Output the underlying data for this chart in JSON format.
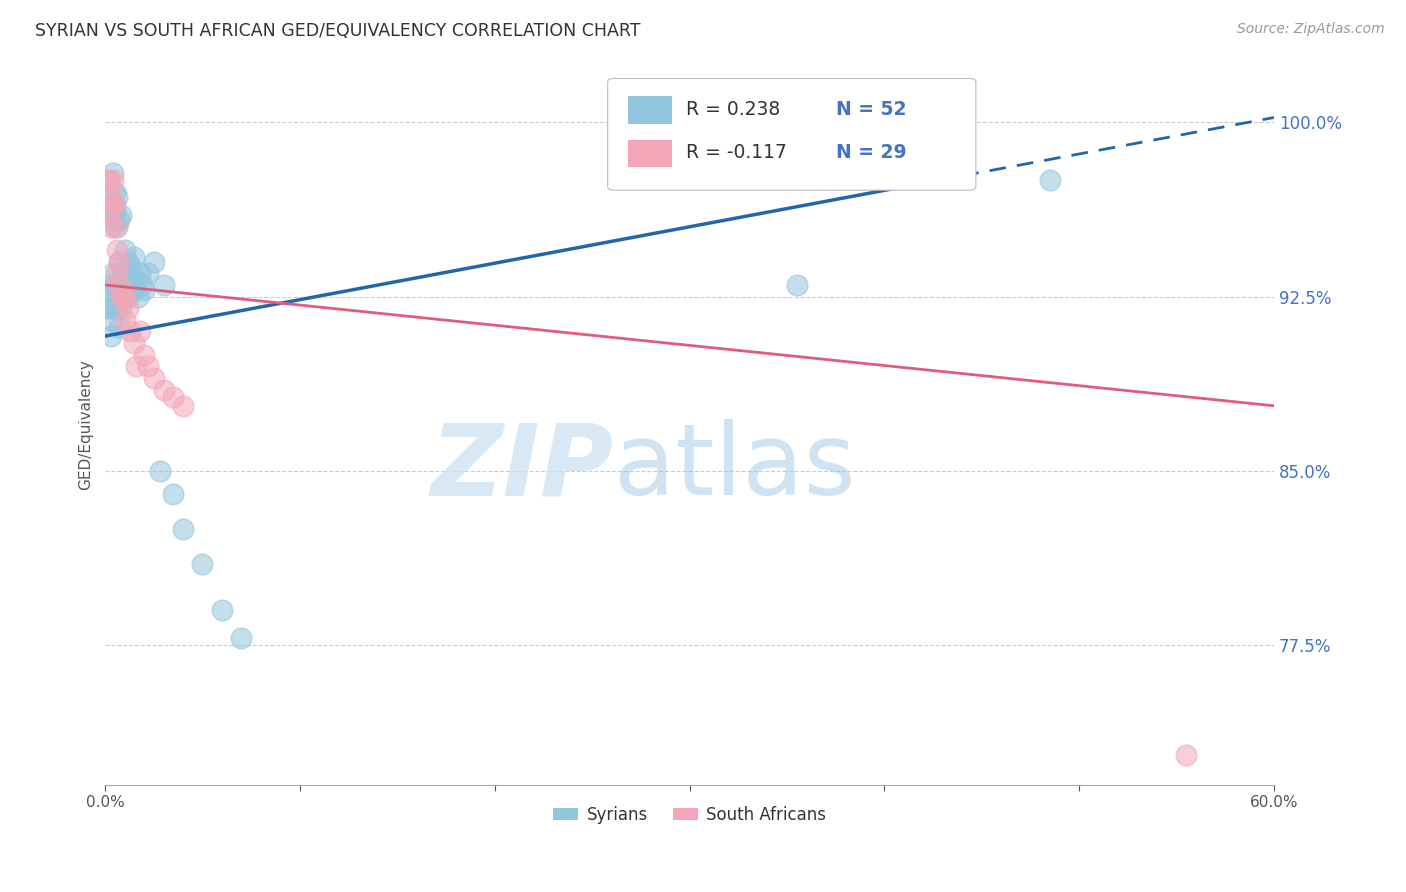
{
  "title": "SYRIAN VS SOUTH AFRICAN GED/EQUIVALENCY CORRELATION CHART",
  "source": "Source: ZipAtlas.com",
  "ylabel": "GED/Equivalency",
  "ytick_labels": [
    "77.5%",
    "85.0%",
    "92.5%",
    "100.0%"
  ],
  "ytick_values": [
    0.775,
    0.85,
    0.925,
    1.0
  ],
  "xmin": 0.0,
  "xmax": 0.6,
  "ymin": 0.715,
  "ymax": 1.025,
  "blue_color": "#92c5de",
  "pink_color": "#f4a6b8",
  "blue_line_color": "#2166ac",
  "pink_line_color": "#e05c7a",
  "blue_line_y0": 0.908,
  "blue_line_y1": 1.002,
  "pink_line_y0": 0.93,
  "pink_line_y1": 0.878,
  "blue_solid_xend": 0.44,
  "syrians_x": [
    0.001,
    0.002,
    0.002,
    0.003,
    0.003,
    0.003,
    0.004,
    0.004,
    0.004,
    0.005,
    0.005,
    0.005,
    0.005,
    0.006,
    0.006,
    0.006,
    0.006,
    0.007,
    0.007,
    0.007,
    0.008,
    0.008,
    0.008,
    0.009,
    0.009,
    0.01,
    0.01,
    0.011,
    0.011,
    0.012,
    0.012,
    0.013,
    0.013,
    0.014,
    0.015,
    0.015,
    0.016,
    0.017,
    0.018,
    0.019,
    0.02,
    0.022,
    0.025,
    0.028,
    0.03,
    0.035,
    0.04,
    0.05,
    0.06,
    0.07,
    0.355,
    0.485
  ],
  "syrians_y": [
    0.92,
    0.93,
    0.925,
    0.915,
    0.908,
    0.92,
    0.935,
    0.965,
    0.978,
    0.93,
    0.958,
    0.97,
    0.962,
    0.92,
    0.925,
    0.955,
    0.968,
    0.912,
    0.94,
    0.958,
    0.93,
    0.92,
    0.96,
    0.935,
    0.928,
    0.945,
    0.935,
    0.93,
    0.928,
    0.925,
    0.94,
    0.935,
    0.938,
    0.93,
    0.942,
    0.928,
    0.932,
    0.925,
    0.935,
    0.93,
    0.928,
    0.935,
    0.94,
    0.85,
    0.93,
    0.84,
    0.825,
    0.81,
    0.79,
    0.778,
    0.93,
    0.975
  ],
  "south_africans_x": [
    0.001,
    0.002,
    0.002,
    0.003,
    0.003,
    0.004,
    0.004,
    0.005,
    0.005,
    0.006,
    0.006,
    0.007,
    0.007,
    0.008,
    0.009,
    0.01,
    0.01,
    0.012,
    0.013,
    0.015,
    0.016,
    0.018,
    0.02,
    0.022,
    0.025,
    0.03,
    0.035,
    0.04,
    0.555
  ],
  "south_africans_y": [
    0.975,
    0.962,
    0.975,
    0.968,
    0.955,
    0.975,
    0.965,
    0.955,
    0.965,
    0.945,
    0.935,
    0.94,
    0.93,
    0.925,
    0.925,
    0.925,
    0.915,
    0.92,
    0.91,
    0.905,
    0.895,
    0.91,
    0.9,
    0.895,
    0.89,
    0.885,
    0.882,
    0.878,
    0.728
  ]
}
